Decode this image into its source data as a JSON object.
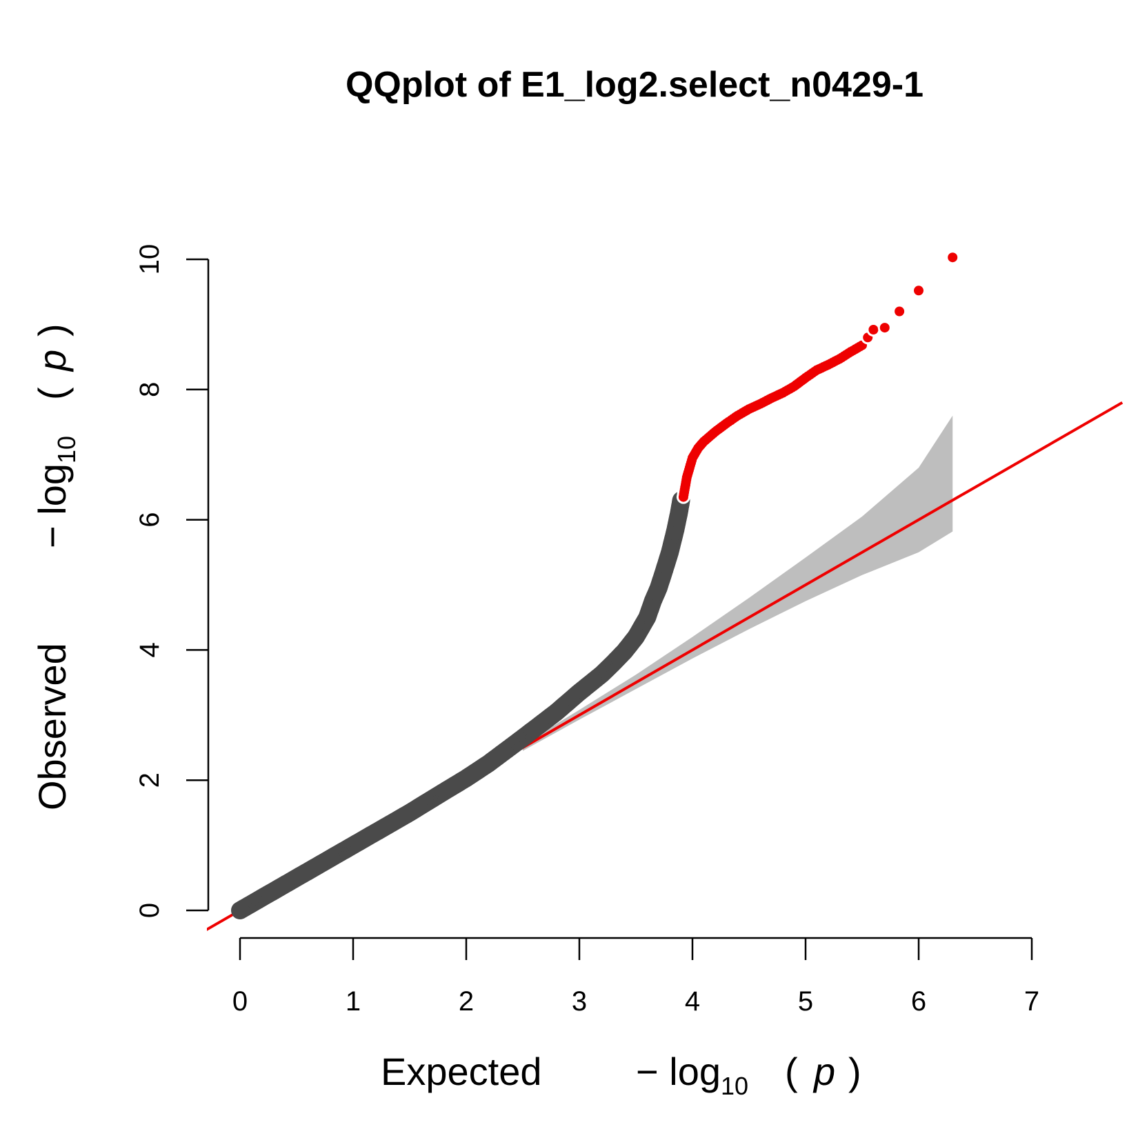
{
  "chart_data": {
    "type": "scatter",
    "title": "QQplot of E1_log2.select_n0429-1",
    "xlabel": {
      "word": "Expected",
      "prefix": "− log",
      "sub": "10",
      "open": "(",
      "var": "p",
      "close": ")"
    },
    "ylabel": {
      "word": "Observed",
      "prefix": "− log",
      "sub": "10",
      "open": "(",
      "var": "p",
      "close": ")"
    },
    "xlim": [
      0,
      7
    ],
    "ylim": [
      0,
      10
    ],
    "x_ticks": [
      0,
      1,
      2,
      3,
      4,
      5,
      6,
      7
    ],
    "y_ticks": [
      0,
      2,
      4,
      6,
      8,
      10
    ],
    "x_tick_labels": [
      "0",
      "1",
      "2",
      "3",
      "4",
      "5",
      "6",
      "7"
    ],
    "y_tick_labels": [
      "0",
      "2",
      "4",
      "6",
      "8",
      "10"
    ],
    "grid": false,
    "colors": {
      "points": "#4a4a4a",
      "significant": "#ee0000",
      "reference_line": "#ee0000",
      "confidence_band": "#bebebe"
    },
    "reference_line": {
      "slope": 1,
      "intercept": 0
    },
    "confidence_band": {
      "x": [
        2.5,
        3.0,
        3.5,
        4.0,
        4.5,
        5.0,
        5.5,
        6.0,
        6.3
      ],
      "upper": [
        2.55,
        3.08,
        3.62,
        4.2,
        4.8,
        5.42,
        6.05,
        6.8,
        7.6
      ],
      "lower": [
        2.45,
        2.93,
        3.4,
        3.87,
        4.32,
        4.75,
        5.15,
        5.5,
        5.82
      ]
    },
    "observed_curve": {
      "x": [
        0,
        0.5,
        1.0,
        1.5,
        1.8,
        2.0,
        2.2,
        2.5,
        2.8,
        3.0,
        3.2,
        3.3,
        3.4,
        3.5,
        3.6,
        3.65,
        3.7,
        3.75,
        3.8,
        3.85,
        3.88,
        3.9
      ],
      "y": [
        0,
        0.5,
        1.0,
        1.5,
        1.82,
        2.03,
        2.26,
        2.65,
        3.05,
        3.35,
        3.63,
        3.8,
        3.98,
        4.2,
        4.5,
        4.75,
        4.95,
        5.22,
        5.5,
        5.85,
        6.1,
        6.3
      ]
    },
    "significant_curve": {
      "x": [
        3.92,
        3.95,
        4.0,
        4.05,
        4.1,
        4.2,
        4.3,
        4.4,
        4.5,
        4.6,
        4.7,
        4.8,
        4.9,
        5.0,
        5.1,
        5.2,
        5.3,
        5.4,
        5.5
      ],
      "y": [
        6.35,
        6.65,
        6.95,
        7.1,
        7.2,
        7.35,
        7.48,
        7.6,
        7.7,
        7.78,
        7.87,
        7.95,
        8.05,
        8.18,
        8.3,
        8.38,
        8.47,
        8.58,
        8.68
      ]
    },
    "significant_points": {
      "x": [
        5.55,
        5.6,
        5.7,
        5.83,
        6.0,
        6.3
      ],
      "y": [
        8.8,
        8.92,
        8.95,
        9.2,
        9.52,
        10.03
      ]
    }
  }
}
